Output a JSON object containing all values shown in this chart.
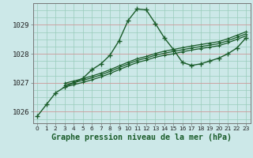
{
  "title": "Graphe pression niveau de la mer (hPa)",
  "bg_color": "#cce8e8",
  "grid_color_v": "#99ccbb",
  "grid_color_h_minor": "#99ccbb",
  "grid_color_h_major": "#cc9999",
  "line_color": "#1a5c2a",
  "ylim": [
    1025.6,
    1029.75
  ],
  "yticks": [
    1026,
    1027,
    1028,
    1029
  ],
  "xlim": [
    -0.5,
    23.5
  ],
  "xticks": [
    0,
    1,
    2,
    3,
    4,
    5,
    6,
    7,
    8,
    9,
    10,
    11,
    12,
    13,
    14,
    15,
    16,
    17,
    18,
    19,
    20,
    21,
    22,
    23
  ],
  "series_main": {
    "x": [
      0,
      1,
      2,
      3,
      4,
      5,
      6,
      7,
      8,
      9,
      10,
      11,
      12,
      13,
      14,
      15,
      16,
      17,
      18,
      19,
      20,
      21,
      22,
      23
    ],
    "y": [
      1025.85,
      1026.25,
      1026.65,
      1026.85,
      1027.0,
      1027.15,
      1027.45,
      1027.65,
      1027.95,
      1028.45,
      1029.15,
      1029.55,
      1029.52,
      1029.05,
      1028.55,
      1028.15,
      1027.7,
      1027.6,
      1027.65,
      1027.75,
      1027.85,
      1028.0,
      1028.2,
      1028.55
    ]
  },
  "series_b": {
    "x": [
      3,
      4,
      5,
      6,
      7,
      8,
      9,
      10,
      11,
      12,
      13,
      14,
      15,
      16,
      17,
      18,
      19,
      20,
      21,
      22,
      23
    ],
    "y": [
      1026.85,
      1026.93,
      1027.01,
      1027.1,
      1027.2,
      1027.32,
      1027.45,
      1027.58,
      1027.7,
      1027.78,
      1027.88,
      1027.95,
      1028.0,
      1028.07,
      1028.13,
      1028.18,
      1028.23,
      1028.28,
      1028.38,
      1028.5,
      1028.62
    ]
  },
  "series_c": {
    "x": [
      3,
      4,
      5,
      6,
      7,
      8,
      9,
      10,
      11,
      12,
      13,
      14,
      15,
      16,
      17,
      18,
      19,
      20,
      21,
      22,
      23
    ],
    "y": [
      1026.92,
      1027.0,
      1027.08,
      1027.17,
      1027.27,
      1027.39,
      1027.52,
      1027.65,
      1027.77,
      1027.85,
      1027.95,
      1028.02,
      1028.08,
      1028.14,
      1028.2,
      1028.25,
      1028.3,
      1028.35,
      1028.45,
      1028.57,
      1028.69
    ]
  },
  "series_d": {
    "x": [
      3,
      4,
      5,
      6,
      7,
      8,
      9,
      10,
      11,
      12,
      13,
      14,
      15,
      16,
      17,
      18,
      19,
      20,
      21,
      22,
      23
    ],
    "y": [
      1026.98,
      1027.06,
      1027.14,
      1027.23,
      1027.33,
      1027.45,
      1027.58,
      1027.71,
      1027.83,
      1027.91,
      1028.01,
      1028.09,
      1028.15,
      1028.21,
      1028.27,
      1028.32,
      1028.37,
      1028.42,
      1028.52,
      1028.64,
      1028.76
    ]
  },
  "tick_fontsize": 6.5,
  "title_fontsize": 7.2
}
